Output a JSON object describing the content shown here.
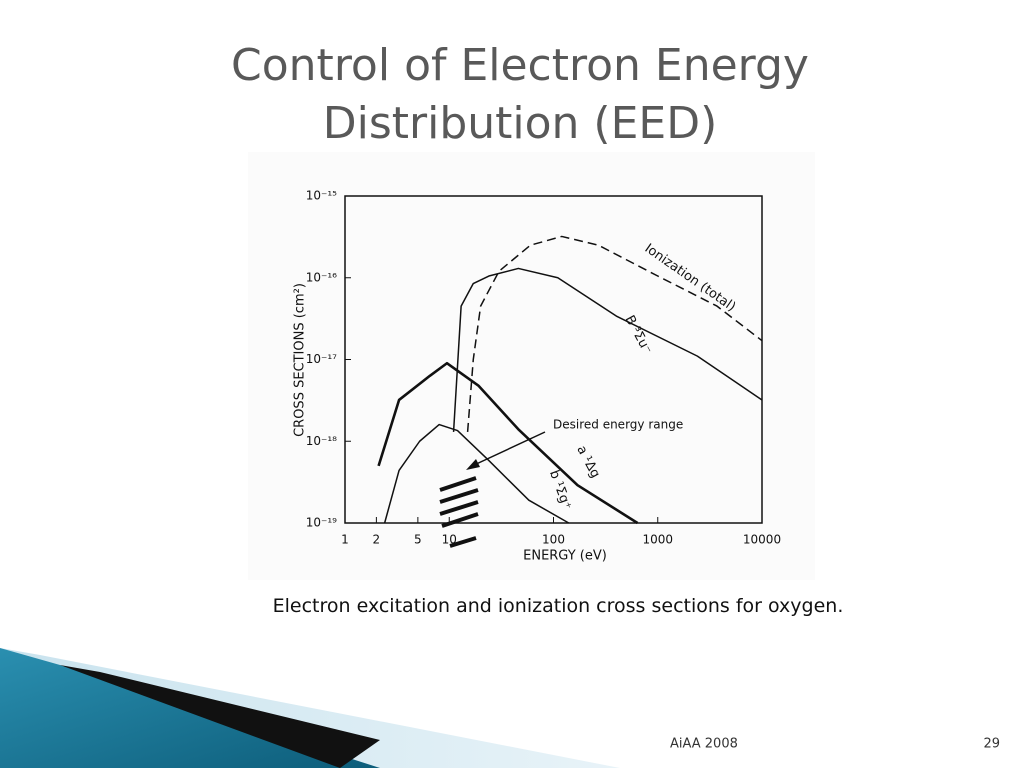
{
  "slide": {
    "title": [
      "Control of Electron Energy",
      "Distribution (EED)"
    ],
    "caption": "Electron excitation and ionization cross sections for oxygen.",
    "footer": "AiAA 2008",
    "page": "29"
  },
  "chart_data": {
    "type": "line",
    "x_label": "ENERGY (eV)",
    "y_label": "CROSS SECTIONS (cm²)",
    "annotation": "Desired energy range",
    "xscale": "log",
    "yscale": "log",
    "xlim": [
      1,
      10000
    ],
    "ylim": [
      1e-19,
      1e-15
    ],
    "xticks": [
      1,
      2,
      5,
      10,
      100,
      1000,
      10000
    ],
    "yticks": [
      {
        "value": 1e-19,
        "label": "10⁻¹⁹"
      },
      {
        "value": 1e-18,
        "label": "10⁻¹⁸"
      },
      {
        "value": 1e-17,
        "label": "10⁻¹⁷"
      },
      {
        "value": 1e-16,
        "label": "10⁻¹⁶"
      },
      {
        "value": 1e-15,
        "label": "10⁻¹⁵"
      }
    ],
    "series": [
      {
        "name": "Ionization (total)",
        "color": "#111111",
        "style": "dashed",
        "x": [
          15,
          17,
          20,
          30,
          60,
          120,
          270,
          1000,
          3700,
          10000
        ],
        "values": [
          1.3e-18,
          1e-17,
          4.5e-17,
          1.2e-16,
          2.5e-16,
          3.2e-16,
          2.5e-16,
          1.05e-16,
          4.5e-17,
          1.7e-17
        ]
      },
      {
        "name": "B ³Σu⁻",
        "color": "#111111",
        "style": "solid",
        "x": [
          11,
          13,
          17,
          24,
          46,
          110,
          400,
          2400,
          10000
        ],
        "values": [
          1.3e-18,
          4.5e-17,
          8.5e-17,
          1.05e-16,
          1.3e-16,
          1e-16,
          3.4e-17,
          1.1e-17,
          3.2e-18
        ]
      },
      {
        "name": "a ¹Δg",
        "color": "#111111",
        "style": "bold",
        "x": [
          2.1,
          3.3,
          6.5,
          9.5,
          19,
          46,
          170,
          640
        ],
        "values": [
          5e-19,
          3.2e-18,
          6.3e-18,
          9e-18,
          4.8e-18,
          1.4e-18,
          2.9e-19,
          1e-19
        ]
      },
      {
        "name": "b ¹Σg⁺",
        "color": "#111111",
        "style": "solid",
        "x": [
          2.4,
          3.3,
          5.2,
          8,
          12,
          24,
          58,
          140
        ],
        "values": [
          1e-19,
          4.4e-19,
          1e-18,
          1.6e-18,
          1.35e-18,
          5.8e-19,
          1.9e-19,
          1e-19
        ]
      }
    ]
  }
}
